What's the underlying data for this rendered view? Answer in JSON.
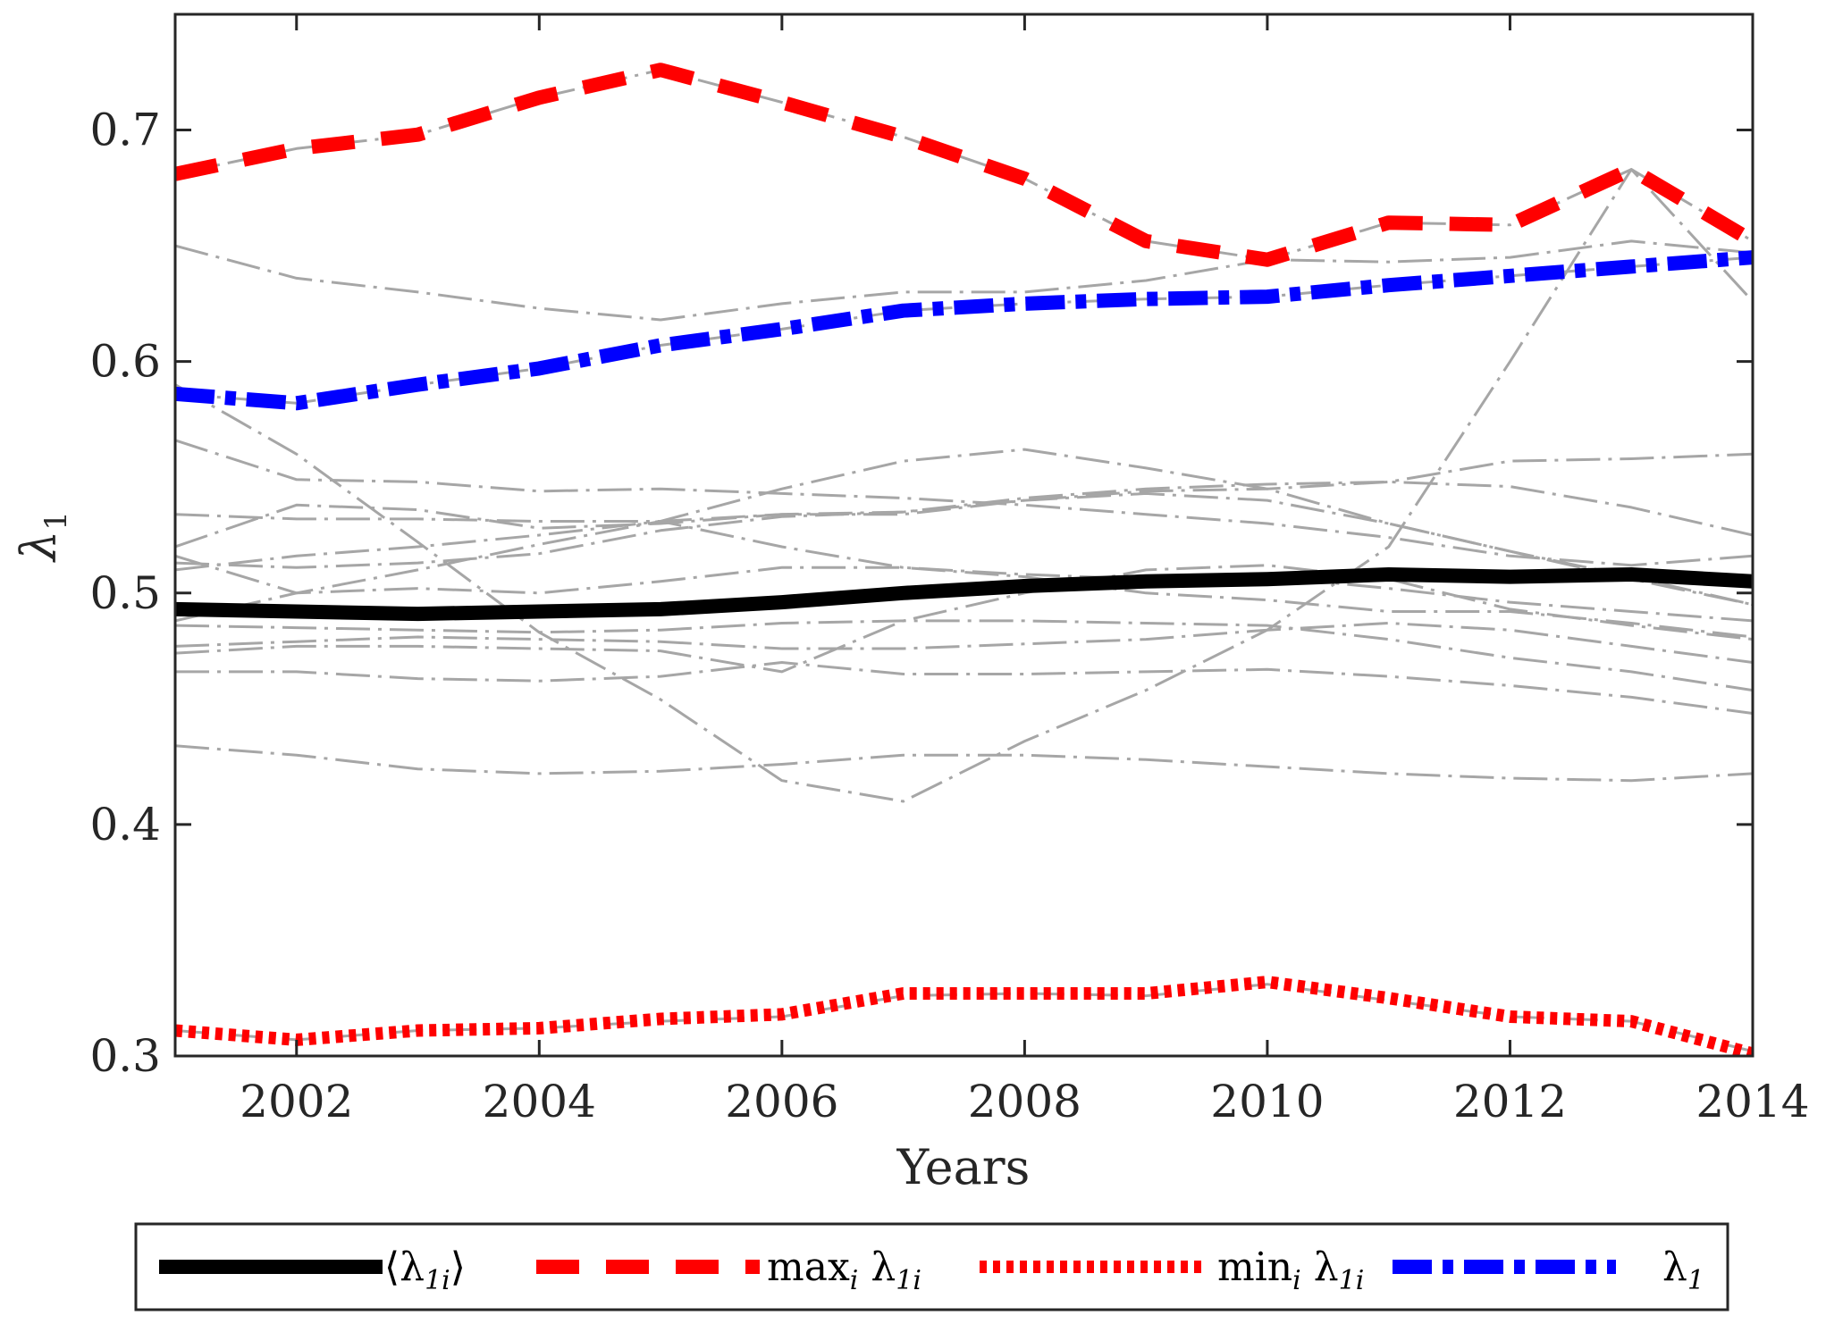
{
  "chart_data": {
    "type": "line",
    "title": "",
    "xlabel": "Years",
    "ylabel": "λ",
    "ylabel_sub": "1",
    "xlim": [
      2001,
      2014
    ],
    "ylim": [
      0.3,
      0.75
    ],
    "xticks": [
      2002,
      2004,
      2006,
      2008,
      2010,
      2012,
      2014
    ],
    "xtick_labels": [
      "2002",
      "2004",
      "2006",
      "2008",
      "2010",
      "2012",
      "2014"
    ],
    "yticks": [
      0.3,
      0.4,
      0.5,
      0.6,
      0.7
    ],
    "ytick_labels": [
      "0.3",
      "0.4",
      "0.5",
      "0.6",
      "0.7"
    ],
    "grid": false,
    "legend_position": "bottom-outside",
    "x": [
      2001,
      2002,
      2003,
      2004,
      2005,
      2006,
      2007,
      2008,
      2009,
      2010,
      2011,
      2012,
      2013,
      2014
    ],
    "background_series": [
      [
        0.681,
        0.692,
        0.698,
        0.714,
        0.726,
        0.712,
        0.697,
        0.679,
        0.652,
        0.644,
        0.66,
        0.659,
        0.683,
        0.652
      ],
      [
        0.65,
        0.636,
        0.63,
        0.623,
        0.618,
        0.625,
        0.63,
        0.63,
        0.635,
        0.644,
        0.643,
        0.645,
        0.652,
        0.647
      ],
      [
        0.586,
        0.582,
        0.59,
        0.597,
        0.607,
        0.614,
        0.622,
        0.625,
        0.627,
        0.628,
        0.633,
        0.637,
        0.641,
        0.645
      ],
      [
        0.59,
        0.56,
        0.522,
        0.483,
        0.454,
        0.419,
        0.41,
        0.436,
        0.458,
        0.484,
        0.52,
        0.6,
        0.683,
        0.626
      ],
      [
        0.566,
        0.549,
        0.548,
        0.544,
        0.545,
        0.543,
        0.541,
        0.538,
        0.534,
        0.53,
        0.524,
        0.516,
        0.512,
        0.516
      ],
      [
        0.534,
        0.532,
        0.532,
        0.531,
        0.531,
        0.534,
        0.535,
        0.54,
        0.544,
        0.545,
        0.548,
        0.557,
        0.558,
        0.56
      ],
      [
        0.52,
        0.538,
        0.536,
        0.528,
        0.53,
        0.534,
        0.534,
        0.54,
        0.543,
        0.54,
        0.53,
        0.518,
        0.507,
        0.495
      ],
      [
        0.51,
        0.516,
        0.52,
        0.525,
        0.531,
        0.545,
        0.557,
        0.562,
        0.554,
        0.545,
        0.53,
        0.518,
        0.506,
        0.495
      ],
      [
        0.516,
        0.5,
        0.502,
        0.5,
        0.505,
        0.511,
        0.511,
        0.508,
        0.506,
        0.507,
        0.502,
        0.496,
        0.492,
        0.488
      ],
      [
        0.513,
        0.511,
        0.513,
        0.517,
        0.527,
        0.533,
        0.535,
        0.541,
        0.545,
        0.547,
        0.548,
        0.546,
        0.537,
        0.525
      ],
      [
        0.488,
        0.5,
        0.51,
        0.521,
        0.531,
        0.52,
        0.511,
        0.507,
        0.5,
        0.497,
        0.492,
        0.492,
        0.487,
        0.481
      ],
      [
        0.486,
        0.485,
        0.484,
        0.483,
        0.484,
        0.487,
        0.488,
        0.488,
        0.487,
        0.486,
        0.48,
        0.472,
        0.466,
        0.458
      ],
      [
        0.477,
        0.479,
        0.481,
        0.48,
        0.479,
        0.476,
        0.476,
        0.478,
        0.48,
        0.484,
        0.487,
        0.484,
        0.477,
        0.47
      ],
      [
        0.474,
        0.477,
        0.477,
        0.476,
        0.475,
        0.466,
        0.488,
        0.5,
        0.51,
        0.512,
        0.506,
        0.493,
        0.486,
        0.48
      ],
      [
        0.466,
        0.466,
        0.463,
        0.462,
        0.464,
        0.47,
        0.465,
        0.465,
        0.466,
        0.467,
        0.464,
        0.46,
        0.455,
        0.448
      ],
      [
        0.434,
        0.43,
        0.424,
        0.422,
        0.423,
        0.426,
        0.43,
        0.43,
        0.428,
        0.425,
        0.422,
        0.42,
        0.419,
        0.422
      ],
      [
        0.311,
        0.307,
        0.311,
        0.312,
        0.315,
        0.317,
        0.326,
        0.327,
        0.326,
        0.331,
        0.324,
        0.317,
        0.315,
        0.302
      ]
    ],
    "series": [
      {
        "name": "⟨λ1i⟩",
        "color": "#000000",
        "style": "solid",
        "values": [
          0.493,
          0.492,
          0.491,
          0.492,
          0.493,
          0.496,
          0.5,
          0.503,
          0.505,
          0.506,
          0.508,
          0.507,
          0.508,
          0.505
        ]
      },
      {
        "name": "maxi λ1i",
        "color": "#ff0000",
        "style": "dashed",
        "values": [
          0.681,
          0.692,
          0.698,
          0.714,
          0.726,
          0.712,
          0.697,
          0.679,
          0.652,
          0.644,
          0.66,
          0.659,
          0.683,
          0.652
        ]
      },
      {
        "name": "mini λ1i",
        "color": "#ff0000",
        "style": "dotted",
        "values": [
          0.311,
          0.307,
          0.311,
          0.312,
          0.316,
          0.318,
          0.327,
          0.327,
          0.327,
          0.332,
          0.325,
          0.317,
          0.315,
          0.301
        ]
      },
      {
        "name": "λ1",
        "color": "#0000ff",
        "style": "dashdot",
        "values": [
          0.586,
          0.582,
          0.59,
          0.597,
          0.607,
          0.614,
          0.622,
          0.625,
          0.627,
          0.628,
          0.633,
          0.637,
          0.641,
          0.645
        ]
      }
    ],
    "legend": [
      {
        "base": "⟨λ",
        "sub": "1i",
        "tail": "⟩"
      },
      {
        "base": "max",
        "sub": "i",
        "tail": " λ",
        "sub2": "1i"
      },
      {
        "base": "min",
        "sub": "i",
        "tail": " λ",
        "sub2": "1i"
      },
      {
        "base": "λ",
        "sub": "1",
        "tail": ""
      }
    ]
  }
}
